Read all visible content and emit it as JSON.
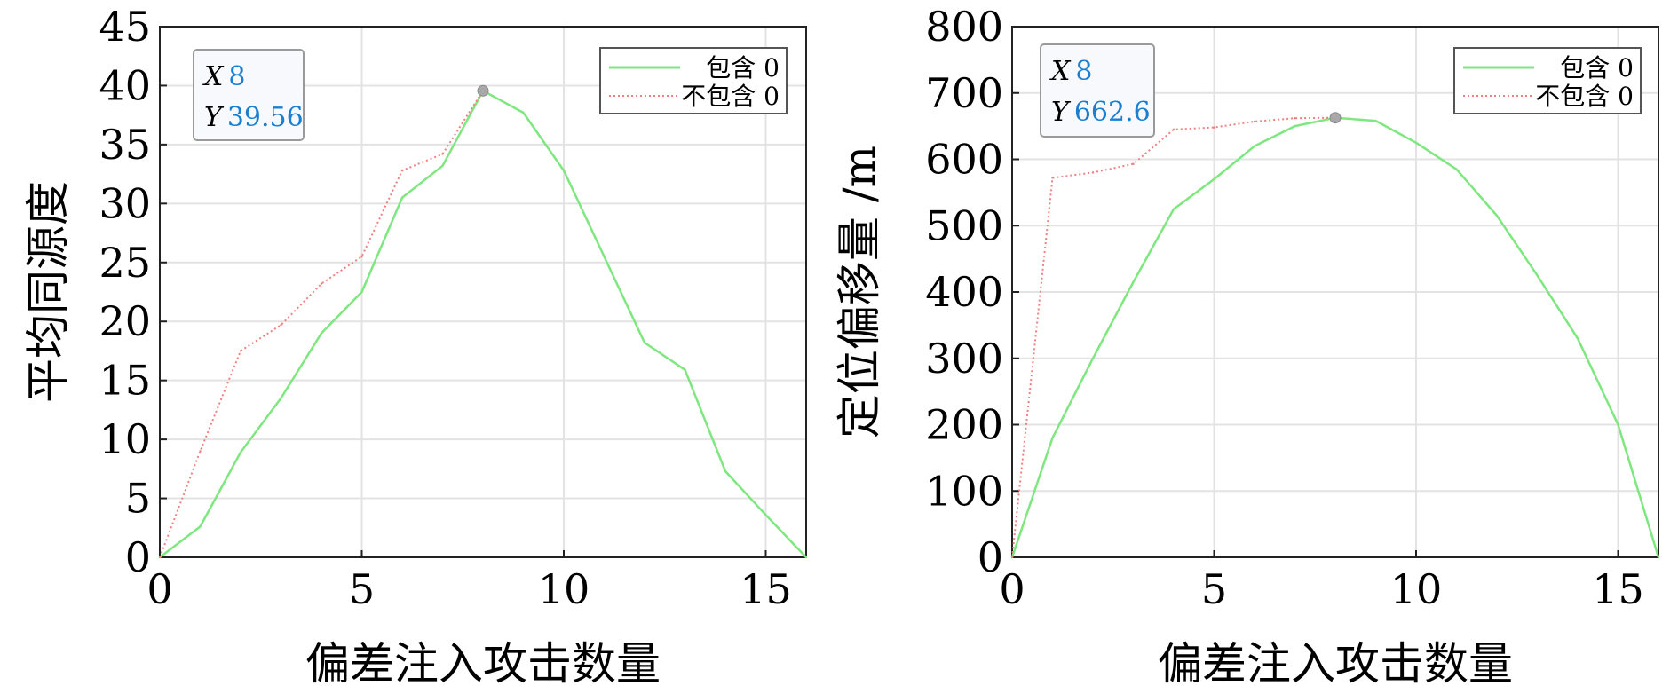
{
  "chart_data": [
    {
      "type": "line",
      "xlabel": "偏差注入攻击数量",
      "ylabel": "平均同源度",
      "xlim": [
        0,
        16
      ],
      "ylim": [
        0,
        45
      ],
      "xticks": [
        0,
        5,
        10,
        15
      ],
      "yticks": [
        0,
        5,
        10,
        15,
        20,
        25,
        30,
        35,
        40,
        45
      ],
      "grid": true,
      "legend_position": "top-right",
      "series": [
        {
          "name": "包含 0",
          "color": "#7fe77f",
          "style": "solid",
          "x": [
            0,
            1,
            2,
            3,
            4,
            5,
            6,
            7,
            8,
            9,
            10,
            11,
            12,
            13,
            14,
            15,
            16
          ],
          "y": [
            0,
            2.6,
            8.9,
            13.5,
            19,
            22.5,
            30.5,
            33.2,
            39.56,
            37.7,
            32.8,
            25.5,
            18.2,
            15.9,
            7.3,
            3.6,
            0
          ]
        },
        {
          "name": "不包含 0",
          "color": "#f08080",
          "style": "dotted",
          "x": [
            0,
            1,
            2,
            3,
            4,
            5,
            6,
            7,
            8
          ],
          "y": [
            0,
            9,
            17.5,
            19.7,
            23.2,
            25.5,
            32.8,
            34.2,
            39.56
          ]
        }
      ],
      "datatip": {
        "x_key": "X",
        "x_value": "8",
        "y_key": "Y",
        "y_value": "39.56"
      }
    },
    {
      "type": "line",
      "xlabel": "偏差注入攻击数量",
      "ylabel": "定位偏移量 /m",
      "xlim": [
        0,
        16
      ],
      "ylim": [
        0,
        800
      ],
      "xticks": [
        0,
        5,
        10,
        15
      ],
      "yticks": [
        0,
        100,
        200,
        300,
        400,
        500,
        600,
        700,
        800
      ],
      "grid": true,
      "legend_position": "top-right",
      "series": [
        {
          "name": "包含 0",
          "color": "#7fe77f",
          "style": "solid",
          "x": [
            0,
            1,
            2,
            3,
            4,
            5,
            6,
            7,
            8,
            9,
            10,
            11,
            12,
            13,
            14,
            15,
            16
          ],
          "y": [
            0,
            180,
            300,
            415,
            525,
            570,
            620,
            650,
            662.6,
            658,
            625,
            585,
            515,
            425,
            330,
            200,
            0
          ]
        },
        {
          "name": "不包含 0",
          "color": "#f08080",
          "style": "dotted",
          "x": [
            0,
            1,
            2,
            3,
            4,
            5,
            6,
            7,
            8
          ],
          "y": [
            0,
            572,
            580,
            593,
            645,
            648,
            657,
            662,
            662.6
          ]
        }
      ],
      "datatip": {
        "x_key": "X",
        "x_value": "8",
        "y_key": "Y",
        "y_value": "662.6"
      }
    }
  ]
}
